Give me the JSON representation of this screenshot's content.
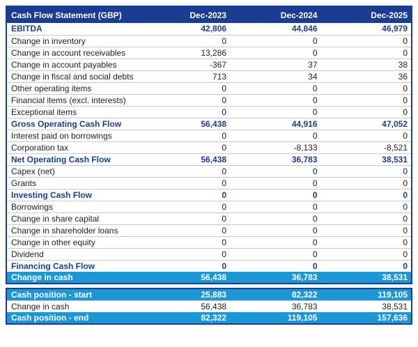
{
  "chart_data": {
    "type": "table",
    "title": "Cash Flow Statement (GBP)",
    "columns": [
      "Dec-2023",
      "Dec-2024",
      "Dec-2025"
    ],
    "rows": [
      {
        "label": "EBITDA",
        "values": [
          "42,806",
          "44,846",
          "46,979"
        ],
        "emphasis": "total"
      },
      {
        "label": "Change in inventory",
        "values": [
          "0",
          "0",
          "0"
        ],
        "emphasis": "item"
      },
      {
        "label": "Change in account receivables",
        "values": [
          "13,286",
          "0",
          "0"
        ],
        "emphasis": "item"
      },
      {
        "label": "Change in account payables",
        "values": [
          "-367",
          "37",
          "38"
        ],
        "emphasis": "item"
      },
      {
        "label": "Change in fiscal and social debts",
        "values": [
          "713",
          "34",
          "36"
        ],
        "emphasis": "item"
      },
      {
        "label": "Other operating items",
        "values": [
          "0",
          "0",
          "0"
        ],
        "emphasis": "item"
      },
      {
        "label": "Financial items (excl. interests)",
        "values": [
          "0",
          "0",
          "0"
        ],
        "emphasis": "item"
      },
      {
        "label": "Exceptional items",
        "values": [
          "0",
          "0",
          "0"
        ],
        "emphasis": "item"
      },
      {
        "label": "Gross Operating Cash Flow",
        "values": [
          "56,438",
          "44,916",
          "47,052"
        ],
        "emphasis": "total"
      },
      {
        "label": "Interest paid on borrowings",
        "values": [
          "0",
          "0",
          "0"
        ],
        "emphasis": "item"
      },
      {
        "label": "Corporation tax",
        "values": [
          "0",
          "-8,133",
          "-8,521"
        ],
        "emphasis": "item"
      },
      {
        "label": "Net Operating Cash Flow",
        "values": [
          "56,438",
          "36,783",
          "38,531"
        ],
        "emphasis": "total"
      },
      {
        "label": "Capex (net)",
        "values": [
          "0",
          "0",
          "0"
        ],
        "emphasis": "item"
      },
      {
        "label": "Grants",
        "values": [
          "0",
          "0",
          "0"
        ],
        "emphasis": "item"
      },
      {
        "label": "Investing Cash Flow",
        "values": [
          "0",
          "0",
          "0"
        ],
        "emphasis": "total"
      },
      {
        "label": "Borrowings",
        "values": [
          "0",
          "0",
          "0"
        ],
        "emphasis": "item"
      },
      {
        "label": "Change in share capital",
        "values": [
          "0",
          "0",
          "0"
        ],
        "emphasis": "item"
      },
      {
        "label": "Change in shareholder loans",
        "values": [
          "0",
          "0",
          "0"
        ],
        "emphasis": "item"
      },
      {
        "label": "Change in other equity",
        "values": [
          "0",
          "0",
          "0"
        ],
        "emphasis": "item"
      },
      {
        "label": "Dividend",
        "values": [
          "0",
          "0",
          "0"
        ],
        "emphasis": "item"
      },
      {
        "label": "Financing Cash Flow",
        "values": [
          "0",
          "0",
          "0"
        ],
        "emphasis": "total"
      },
      {
        "label": "Change in cash",
        "values": [
          "56,438",
          "36,783",
          "38,531"
        ],
        "emphasis": "highlight"
      }
    ],
    "summary_rows": [
      {
        "label": "Cash position - start",
        "values": [
          "25,883",
          "82,322",
          "119,105"
        ],
        "emphasis": "highlight"
      },
      {
        "label": "Change in cash",
        "values": [
          "56,438",
          "36,783",
          "38,531"
        ],
        "emphasis": "item"
      },
      {
        "label": "Cash position - end",
        "values": [
          "82,322",
          "119,105",
          "157,636"
        ],
        "emphasis": "highlight"
      }
    ]
  },
  "colors": {
    "header_bg": "#1b3d91",
    "header_text": "#ffffff",
    "highlight_bg": "#1b97d5",
    "highlight_text": "#ffffff",
    "total_text": "#1b3d91",
    "body_text": "#212121",
    "row_separator": "#c9c9c9"
  }
}
